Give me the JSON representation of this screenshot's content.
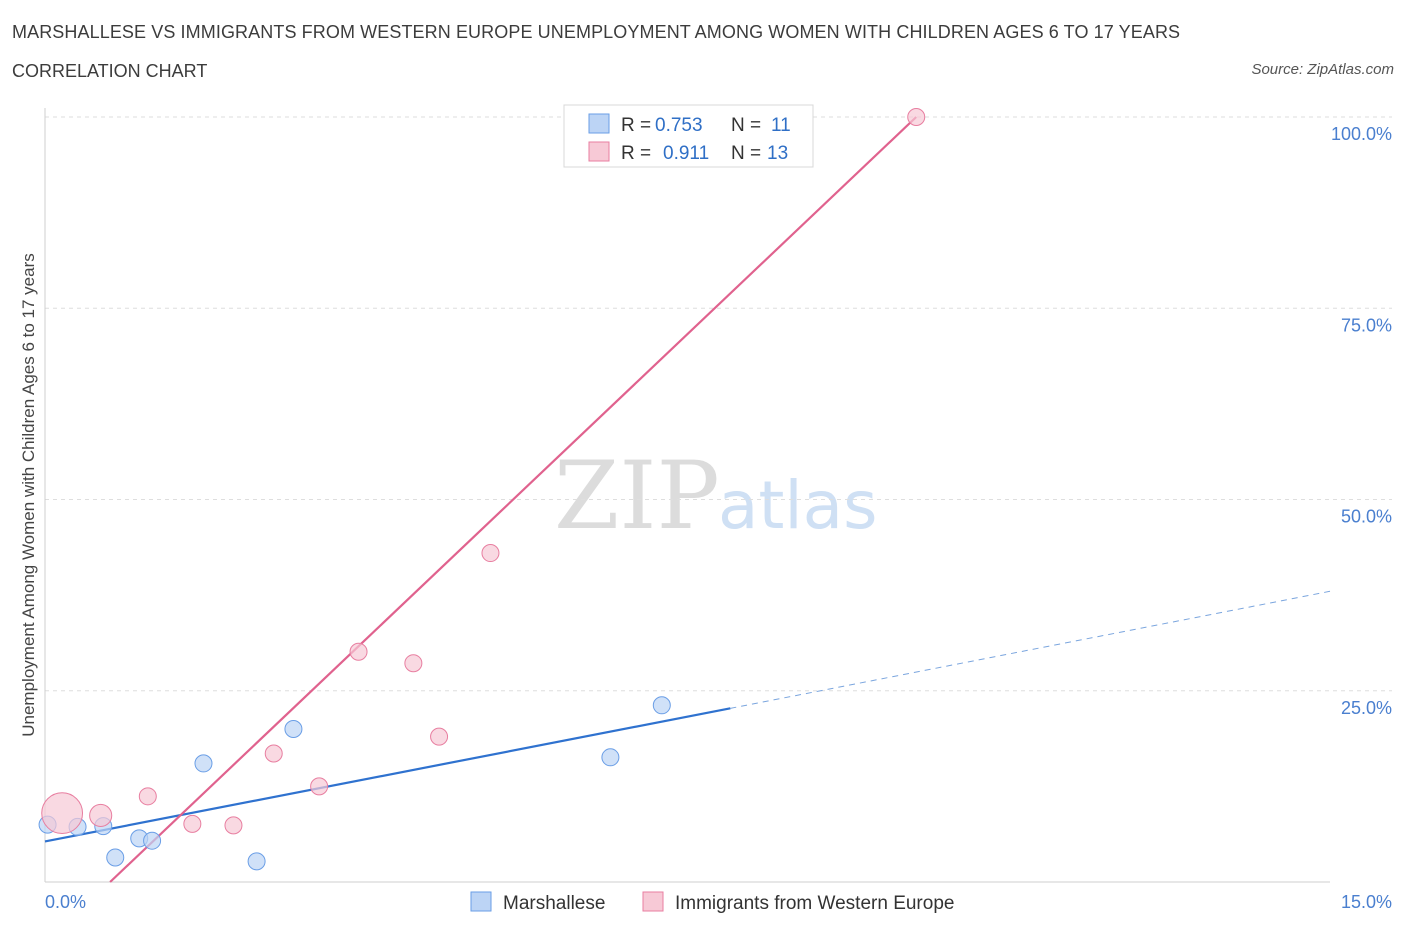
{
  "header": {
    "title": "MARSHALLESE VS IMMIGRANTS FROM WESTERN EUROPE UNEMPLOYMENT AMONG WOMEN WITH CHILDREN AGES 6 TO 17 YEARS",
    "subtitle": "CORRELATION CHART",
    "source": "Source: ZipAtlas.com"
  },
  "watermark": {
    "zip": "ZIP",
    "atlas": "atlas"
  },
  "legend_top": {
    "r_label": "R =",
    "n_label": "N =",
    "rows": [
      {
        "r": "0.753",
        "n": "11",
        "color": "#a9c8f0"
      },
      {
        "r": "0.911",
        "n": "13",
        "color": "#f5b8ca"
      }
    ]
  },
  "chart_data": {
    "type": "scatter",
    "title": "MARSHALLESE VS IMMIGRANTS FROM WESTERN EUROPE UNEMPLOYMENT AMONG WOMEN WITH CHILDREN AGES 6 TO 17 YEARS",
    "xlabel": "",
    "ylabel": "Unemployment Among Women with Children Ages 6 to 17 years",
    "xlim": [
      0,
      15
    ],
    "ylim": [
      0,
      100
    ],
    "x_tick_labels": [
      "0.0%",
      "15.0%"
    ],
    "y_tick_labels": [
      "25.0%",
      "50.0%",
      "75.0%",
      "100.0%"
    ],
    "y_ticks": [
      25,
      50,
      75,
      100
    ],
    "grid": true,
    "legend_position": "bottom-center",
    "series": [
      {
        "name": "Marshallese",
        "color": "#6a9ee6",
        "fill": "#bcd4f5",
        "points": [
          {
            "x": 0.03,
            "y": 7.5,
            "s": 1
          },
          {
            "x": 0.38,
            "y": 7.2,
            "s": 1
          },
          {
            "x": 0.68,
            "y": 7.3,
            "s": 1
          },
          {
            "x": 0.82,
            "y": 3.2,
            "s": 1
          },
          {
            "x": 1.1,
            "y": 5.7,
            "s": 1
          },
          {
            "x": 1.25,
            "y": 5.4,
            "s": 1
          },
          {
            "x": 1.85,
            "y": 15.5,
            "s": 1
          },
          {
            "x": 2.47,
            "y": 2.7,
            "s": 1
          },
          {
            "x": 2.9,
            "y": 20.0,
            "s": 1
          },
          {
            "x": 6.6,
            "y": 16.3,
            "s": 1
          },
          {
            "x": 7.2,
            "y": 23.1,
            "s": 1
          }
        ],
        "trend": {
          "x0": 0,
          "y0": 5.3,
          "x1": 8.0,
          "y1": 22.7,
          "dash_x1": 15.0,
          "dash_y1": 38.0
        }
      },
      {
        "name": "Immigrants from Western Europe",
        "color": "#e87ea0",
        "fill": "#f7c9d6",
        "points": [
          {
            "x": 0.2,
            "y": 9.0,
            "s": 2.4
          },
          {
            "x": 0.65,
            "y": 8.7,
            "s": 1.3
          },
          {
            "x": 1.2,
            "y": 11.2,
            "s": 1
          },
          {
            "x": 1.72,
            "y": 7.6,
            "s": 1
          },
          {
            "x": 2.2,
            "y": 7.4,
            "s": 1
          },
          {
            "x": 2.67,
            "y": 16.8,
            "s": 1
          },
          {
            "x": 3.2,
            "y": 12.5,
            "s": 1
          },
          {
            "x": 3.66,
            "y": 30.1,
            "s": 1
          },
          {
            "x": 4.3,
            "y": 28.6,
            "s": 1
          },
          {
            "x": 4.6,
            "y": 19.0,
            "s": 1
          },
          {
            "x": 5.2,
            "y": 43.0,
            "s": 1
          },
          {
            "x": 7.2,
            "y": 100.0,
            "s": 1
          },
          {
            "x": 10.17,
            "y": 100.0,
            "s": 1
          }
        ],
        "trend": {
          "x0": 0.76,
          "y0": 0.0,
          "x1": 10.17,
          "y1": 100.0
        }
      }
    ]
  }
}
